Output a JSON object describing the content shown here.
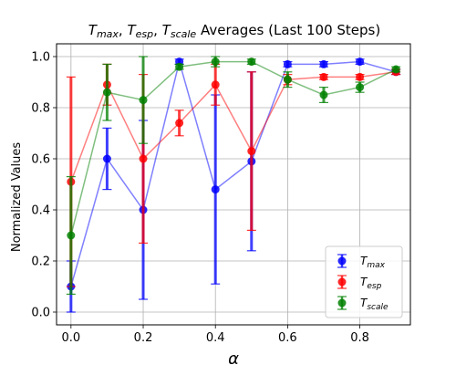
{
  "chart_data": {
    "type": "scatter",
    "title": "T_max, T_esp, T_scale Averages (Last 100 Steps)",
    "title_parts": [
      {
        "text": "T",
        "style": "italic"
      },
      {
        "text": "max",
        "style": "sub"
      },
      {
        "text": ", ",
        "style": "normal"
      },
      {
        "text": "T",
        "style": "italic"
      },
      {
        "text": "esp",
        "style": "sub"
      },
      {
        "text": ", ",
        "style": "normal"
      },
      {
        "text": "T",
        "style": "italic"
      },
      {
        "text": "scale",
        "style": "sub"
      },
      {
        "text": " Averages (Last 100 Steps)",
        "style": "normal"
      }
    ],
    "xlabel": "α",
    "ylabel": "Normalized Values",
    "xlim": [
      -0.04,
      0.94
    ],
    "ylim": [
      -0.05,
      1.05
    ],
    "x_ticks": [
      0.0,
      0.2,
      0.4,
      0.6,
      0.8
    ],
    "x_tick_labels": [
      "0.0",
      "0.2",
      "0.4",
      "0.6",
      "0.8"
    ],
    "y_ticks": [
      0.0,
      0.2,
      0.4,
      0.6,
      0.8,
      1.0
    ],
    "y_tick_labels": [
      "0.0",
      "0.2",
      "0.4",
      "0.6",
      "0.8",
      "1.0"
    ],
    "grid": true,
    "legend_position": "lower right",
    "x": [
      0.0,
      0.1,
      0.2,
      0.3,
      0.4,
      0.5,
      0.6,
      0.7,
      0.8,
      0.9
    ],
    "series": [
      {
        "name": "T_max",
        "label_main": "T",
        "label_sub": "max",
        "color": "#0000ff",
        "values": [
          0.1,
          0.6,
          0.4,
          0.98,
          0.48,
          0.59,
          0.97,
          0.97,
          0.98,
          0.94
        ],
        "errors": [
          0.1,
          0.12,
          0.35,
          0.01,
          0.37,
          0.35,
          0.01,
          0.01,
          0.01,
          0.01
        ]
      },
      {
        "name": "T_esp",
        "label_main": "T",
        "label_sub": "esp",
        "color": "#ff0000",
        "values": [
          0.51,
          0.89,
          0.6,
          0.74,
          0.89,
          0.63,
          0.91,
          0.92,
          0.92,
          0.94
        ],
        "errors": [
          0.41,
          0.08,
          0.33,
          0.05,
          0.08,
          0.31,
          0.02,
          0.01,
          0.01,
          0.01
        ]
      },
      {
        "name": "T_scale",
        "label_main": "T",
        "label_sub": "scale",
        "color": "#008000",
        "values": [
          0.3,
          0.86,
          0.83,
          0.96,
          0.98,
          0.98,
          0.91,
          0.85,
          0.88,
          0.95
        ],
        "errors": [
          0.23,
          0.11,
          0.17,
          0.01,
          0.02,
          0.01,
          0.03,
          0.03,
          0.02,
          0.01
        ]
      }
    ]
  }
}
